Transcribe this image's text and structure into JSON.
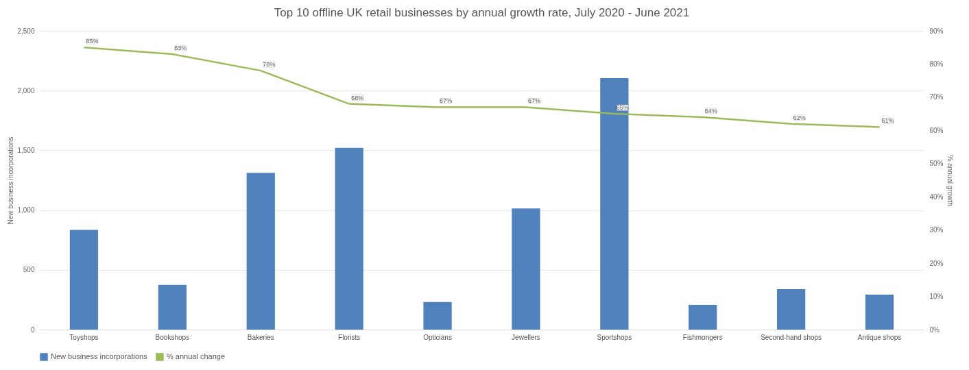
{
  "chart_data": {
    "type": "bar",
    "title": "Top 10 offline UK retail businesses by annual growth rate, July 2020 - June 2021",
    "categories": [
      "Toyshops",
      "Bookshops",
      "Bakeries",
      "Florists",
      "Opticians",
      "Jewellers",
      "Sportshops",
      "Fishmongers",
      "Second-hand shops",
      "Antique shops"
    ],
    "series": [
      {
        "name": "New business incorporations",
        "color": "#4f81bd",
        "values": [
          834,
          374,
          1312,
          1521,
          231,
          1013,
          2104,
          206,
          339,
          292
        ]
      },
      {
        "name": "% annual change",
        "type": "line",
        "axis": "y2",
        "color": "#9bbb59",
        "values": [
          85,
          83,
          78,
          68,
          67,
          67,
          65,
          64,
          62,
          61
        ],
        "value_labels": [
          "85%",
          "83%",
          "78%",
          "68%",
          "67%",
          "67%",
          "65%",
          "64%",
          "62%",
          "61%"
        ]
      }
    ],
    "ylabel": "New business incorporations",
    "y2label": "% annual growth",
    "ylim": [
      0,
      2500
    ],
    "yticks": [
      0,
      500,
      {
        "value": 1000,
        "label": "1,000"
      },
      {
        "value": 1500,
        "label": "1,500"
      },
      {
        "value": 2000,
        "label": "2,000"
      },
      {
        "value": 2500,
        "label": "2,500"
      }
    ],
    "y2lim": [
      0,
      90
    ],
    "y2ticks": [
      {
        "value": 0,
        "label": "0%"
      },
      {
        "value": 10,
        "label": "10%"
      },
      {
        "value": 20,
        "label": "20%"
      },
      {
        "value": 30,
        "label": "30%"
      },
      {
        "value": 40,
        "label": "40%"
      },
      {
        "value": 50,
        "label": "50%"
      },
      {
        "value": 60,
        "label": "60%"
      },
      {
        "value": 70,
        "label": "70%"
      },
      {
        "value": 80,
        "label": "80%"
      },
      {
        "value": 90,
        "label": "90%"
      }
    ],
    "grid": "y",
    "legend": "bottom"
  }
}
